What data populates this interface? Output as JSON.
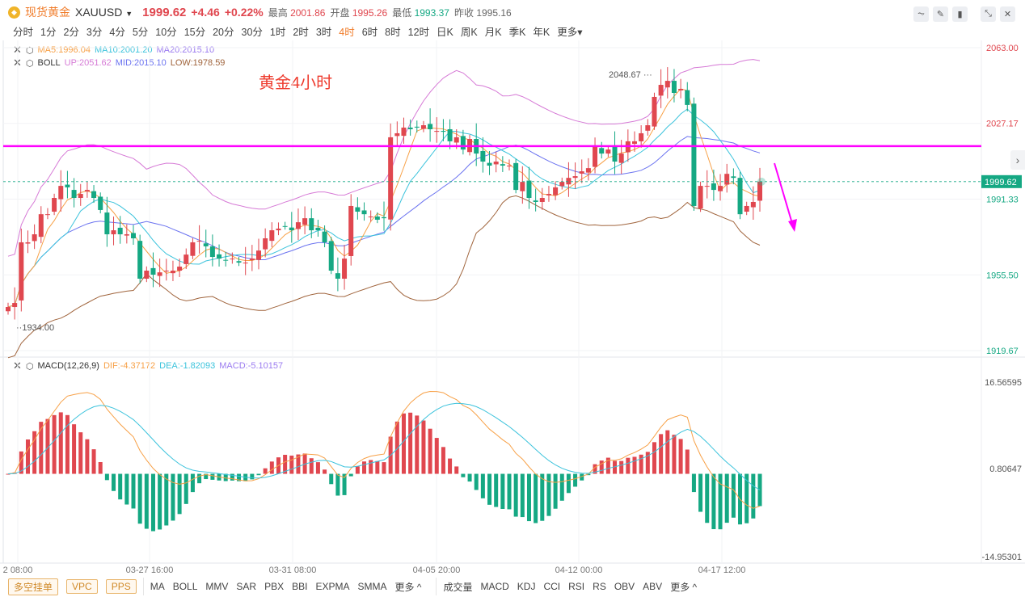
{
  "header": {
    "logo_glyph": "◆",
    "name": "现货黄金",
    "symbol": "XAUUSD",
    "last": "1999.62",
    "change": "+4.46",
    "change_pct": "+0.22%",
    "high_label": "最高",
    "high": "2001.86",
    "open_label": "开盘",
    "open": "1995.26",
    "low_label": "最低",
    "low": "1993.37",
    "prev_label": "昨收",
    "prev": "1995.16"
  },
  "periods": [
    "分时",
    "1分",
    "2分",
    "3分",
    "4分",
    "5分",
    "10分",
    "15分",
    "20分",
    "30分",
    "1时",
    "2时",
    "3时",
    "4时",
    "6时",
    "8时",
    "12时",
    "日K",
    "周K",
    "月K",
    "季K",
    "年K",
    "更多▾"
  ],
  "active_period": "4时",
  "toolbar_icons": [
    "indicator-icon",
    "draw-icon",
    "candle-type-icon",
    "collapse-icon",
    "close-icon"
  ],
  "legend": {
    "ma": {
      "ma5": "MA5:1996.04",
      "ma10": "MA10:2001.20",
      "ma20": "MA20:2015.10"
    },
    "boll": {
      "title": "BOLL",
      "up": "UP:2051.62",
      "mid": "MID:2015.10",
      "low": "LOW:1978.59"
    },
    "macd": {
      "title": "MACD(12,26,9)",
      "dif": "DIF:-4.37172",
      "dea": "DEA:-1.82093",
      "macd": "MACD:-5.10157"
    }
  },
  "annotation": "黄金4小时",
  "colors": {
    "up": "#e0474f",
    "down": "#15a883",
    "ma5": "#f7a046",
    "ma10": "#3cc3dc",
    "ma20": "#7b7bf0",
    "boll_up": "#d67ad6",
    "boll_mid": "#6b73f0",
    "boll_low": "#a0643c",
    "hline": "#ff00ff"
  },
  "chart_data": {
    "type": "candlestick",
    "timeframe": "4H",
    "price_ticks": [
      "2063.00",
      "2027.17",
      "1991.33",
      "1955.50",
      "1919.67"
    ],
    "price_range": [
      1919.67,
      2063.0
    ],
    "current_price_label": "1999.62",
    "max_label": "2048.67",
    "min_label": "1934.00",
    "horizontal_line_price": 2016.4,
    "macd_ticks": [
      "16.56595",
      "0.80647",
      "-14.95301"
    ],
    "macd_range": [
      -14.95301,
      16.56595
    ],
    "time_labels": [
      "2 08:00",
      "03-27 16:00",
      "03-31 08:00",
      "04-05 20:00",
      "04-12 00:00",
      "04-17 12:00"
    ],
    "closes": [
      1940.3,
      1942.2,
      1970.9,
      1970.9,
      1974.7,
      1984.2,
      1984.2,
      1991.9,
      1997.6,
      1996.9,
      1991.9,
      1993.8,
      1995.7,
      1991.9,
      1986.2,
      1974.7,
      1976.6,
      1974.7,
      1974.7,
      1972.8,
      1953.7,
      1957.5,
      1955.6,
      1956.7,
      1957.5,
      1957.5,
      1959.4,
      1965.1,
      1970.9,
      1971.6,
      1969.0,
      1964.0,
      1963.2,
      1962.5,
      1963.2,
      1961.3,
      1961.3,
      1963.2,
      1967.0,
      1972.8,
      1976.6,
      1977.4,
      1978.5,
      1976.6,
      1980.4,
      1982.3,
      1976.6,
      1976.6,
      1970.9,
      1957.5,
      1953.7,
      1963.2,
      1988.1,
      1985.4,
      1984.2,
      1983.1,
      1981.6,
      1982.3,
      2020.6,
      2022.5,
      2025.2,
      2024.4,
      2025.2,
      2026.3,
      2024.4,
      2023.6,
      2023.2,
      2018.7,
      2020.6,
      2014.8,
      2019.8,
      2012.9,
      2009.1,
      2007.2,
      2009.1,
      2007.2,
      2007.2,
      1995.7,
      1999.5,
      1991.9,
      1990.0,
      1991.9,
      1993.8,
      1996.9,
      1999.5,
      2001.4,
      2002.2,
      2004.5,
      2006.0,
      2016.7,
      2012.9,
      2014.8,
      2009.1,
      2012.9,
      2018.7,
      2018.7,
      2022.5,
      2026.3,
      2039.7,
      2045.4,
      2047.3,
      2041.6,
      2043.5,
      2035.9,
      1988.1,
      1997.6,
      1997.6,
      1995.7,
      1997.6,
      2003.3,
      2001.4,
      1984.2,
      1988.1,
      1990.0,
      1999.62
    ]
  },
  "bottom": {
    "order_buttons": [
      "多空挂单",
      "VPC",
      "PPS"
    ],
    "main_indicators": [
      "MA",
      "BOLL",
      "MMV",
      "SAR",
      "PBX",
      "BBI",
      "EXPMA",
      "SMMA",
      "更多 ^"
    ],
    "sub_indicators": [
      "成交量",
      "MACD",
      "KDJ",
      "CCI",
      "RSI",
      "RS",
      "OBV",
      "ABV",
      "更多 ^"
    ]
  },
  "side_button": "›"
}
